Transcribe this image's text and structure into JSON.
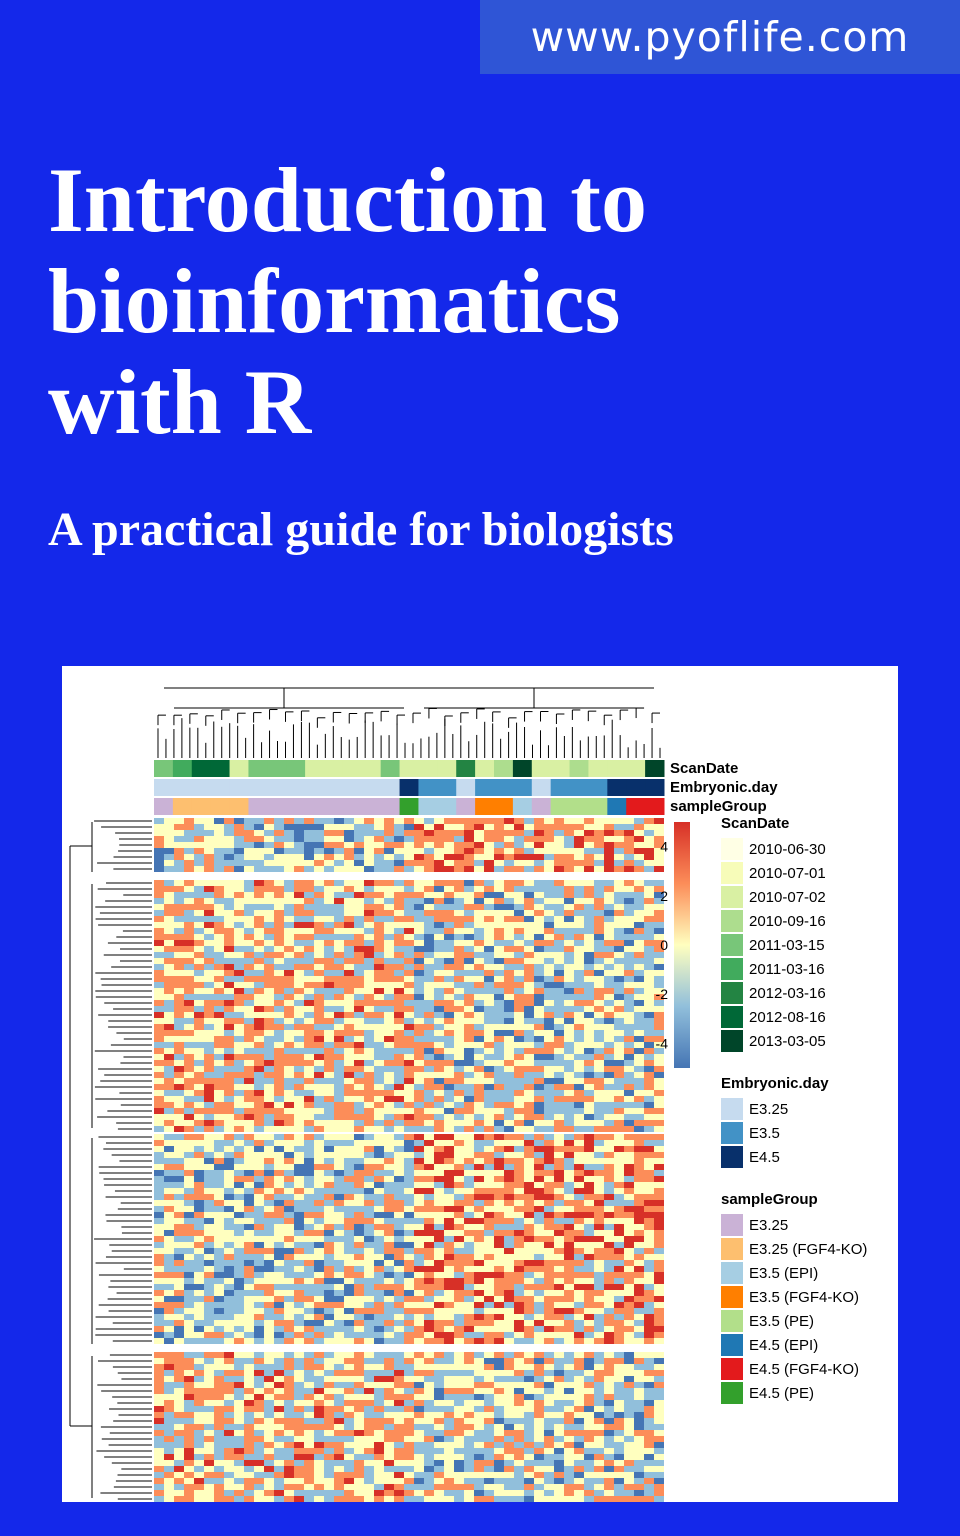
{
  "site": {
    "url": "www.pyoflife.com"
  },
  "book": {
    "title_lines": [
      "Introduction to",
      "bioinformatics",
      "with R"
    ],
    "subtitle": "A practical guide for biologists"
  },
  "colors": {
    "background": "#1428ea",
    "url_banner": "#2f55d6",
    "text": "#ffffff"
  },
  "chart_data": {
    "type": "heatmap",
    "annotation_tracks": [
      "ScanDate",
      "Embryonic.day",
      "sampleGroup"
    ],
    "colorbar": {
      "ticks": [
        4,
        2,
        0,
        -2,
        -4
      ],
      "tick_labels": [
        "4",
        "2",
        "0",
        "-2",
        "-4"
      ],
      "range": [
        -5,
        5
      ],
      "colors": [
        "#4575b4",
        "#91bfdb",
        "#ffffbf",
        "#fc8d59",
        "#d73027"
      ]
    },
    "legends": [
      {
        "title": "ScanDate",
        "items": [
          {
            "label": "2010-06-30",
            "color": "#ffffe5"
          },
          {
            "label": "2010-07-01",
            "color": "#f7fcb9"
          },
          {
            "label": "2010-07-02",
            "color": "#d9f0a3"
          },
          {
            "label": "2010-09-16",
            "color": "#addd8e"
          },
          {
            "label": "2011-03-15",
            "color": "#78c679"
          },
          {
            "label": "2011-03-16",
            "color": "#41ab5d"
          },
          {
            "label": "2012-03-16",
            "color": "#238443"
          },
          {
            "label": "2012-08-16",
            "color": "#006837"
          },
          {
            "label": "2013-03-05",
            "color": "#004529"
          }
        ]
      },
      {
        "title": "Embryonic.day",
        "items": [
          {
            "label": "E3.25",
            "color": "#c6dbef"
          },
          {
            "label": "E3.5",
            "color": "#4292c6"
          },
          {
            "label": "E4.5",
            "color": "#08306b"
          }
        ]
      },
      {
        "title": "sampleGroup",
        "items": [
          {
            "label": "E3.25",
            "color": "#cab2d6"
          },
          {
            "label": "E3.25 (FGF4-KO)",
            "color": "#fdbf6f"
          },
          {
            "label": "E3.5 (EPI)",
            "color": "#a6cee3"
          },
          {
            "label": "E3.5 (FGF4-KO)",
            "color": "#ff7f00"
          },
          {
            "label": "E3.5 (PE)",
            "color": "#b2df8a"
          },
          {
            "label": "E4.5 (EPI)",
            "color": "#1f78b4"
          },
          {
            "label": "E4.5 (FGF4-KO)",
            "color": "#e31a1c"
          },
          {
            "label": "E4.5 (PE)",
            "color": "#33a02c"
          }
        ]
      }
    ],
    "column_annotations": {
      "ScanDate": [
        "2011-03-15",
        "2011-03-16",
        "2012-08-16",
        "2012-08-16",
        "2010-07-02",
        "2011-03-15",
        "2011-03-15",
        "2011-03-15",
        "2010-07-02",
        "2010-07-02",
        "2010-07-02",
        "2010-07-02",
        "2011-03-15",
        "2010-07-02",
        "2010-07-02",
        "2010-07-02",
        "2012-03-16",
        "2010-07-02",
        "2010-09-16",
        "2013-03-05",
        "2010-07-02",
        "2010-07-02",
        "2010-09-16",
        "2010-07-02",
        "2010-07-02",
        "2010-07-02",
        "2013-03-05"
      ],
      "Embryonic.day": [
        "E3.25",
        "E3.25",
        "E3.25",
        "E3.25",
        "E3.25",
        "E3.25",
        "E3.25",
        "E3.25",
        "E3.25",
        "E3.25",
        "E3.25",
        "E3.25",
        "E3.25",
        "E4.5",
        "E3.5",
        "E3.5",
        "E3.25",
        "E3.5",
        "E3.5",
        "E3.5",
        "E3.25",
        "E3.5",
        "E3.5",
        "E3.5",
        "E4.5",
        "E4.5",
        "E4.5"
      ],
      "sampleGroup": [
        "E3.25",
        "E3.25 (FGF4-KO)",
        "E3.25 (FGF4-KO)",
        "E3.25 (FGF4-KO)",
        "E3.25 (FGF4-KO)",
        "E3.25",
        "E3.25",
        "E3.25",
        "E3.25",
        "E3.25",
        "E3.25",
        "E3.25",
        "E3.25",
        "E4.5 (PE)",
        "E3.5 (EPI)",
        "E3.5 (EPI)",
        "E3.25",
        "E3.5 (FGF4-KO)",
        "E3.5 (FGF4-KO)",
        "E3.5 (EPI)",
        "E3.25",
        "E3.5 (PE)",
        "E3.5 (PE)",
        "E3.5 (PE)",
        "E4.5 (EPI)",
        "E4.5 (FGF4-KO)",
        "E4.5 (FGF4-KO)"
      ]
    },
    "row_clusters": 4
  }
}
